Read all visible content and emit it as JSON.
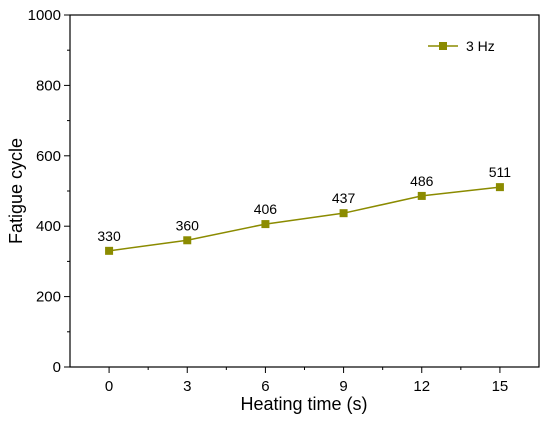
{
  "chart_data": {
    "type": "line",
    "xlabel": "Heating time (s)",
    "ylabel": "Fatigue cycle",
    "xlim": [
      -1.5,
      16.5
    ],
    "ylim": [
      0,
      1000
    ],
    "x_ticks": [
      0,
      3,
      6,
      9,
      12,
      15
    ],
    "x_tick_labels": [
      "0",
      "3",
      "6",
      "9",
      "12",
      "15"
    ],
    "y_ticks": [
      0,
      200,
      400,
      600,
      800,
      1000
    ],
    "y_tick_labels": [
      "0",
      "200",
      "400",
      "600",
      "800",
      "1000"
    ],
    "grid": false,
    "legend_position": "top-right",
    "series": [
      {
        "name": "3 Hz",
        "color": "#8b8b00",
        "marker": "square",
        "x": [
          0,
          3,
          6,
          9,
          12,
          15
        ],
        "values": [
          330,
          360,
          406,
          437,
          486,
          511
        ],
        "data_labels": [
          "330",
          "360",
          "406",
          "437",
          "486",
          "511"
        ]
      }
    ]
  }
}
